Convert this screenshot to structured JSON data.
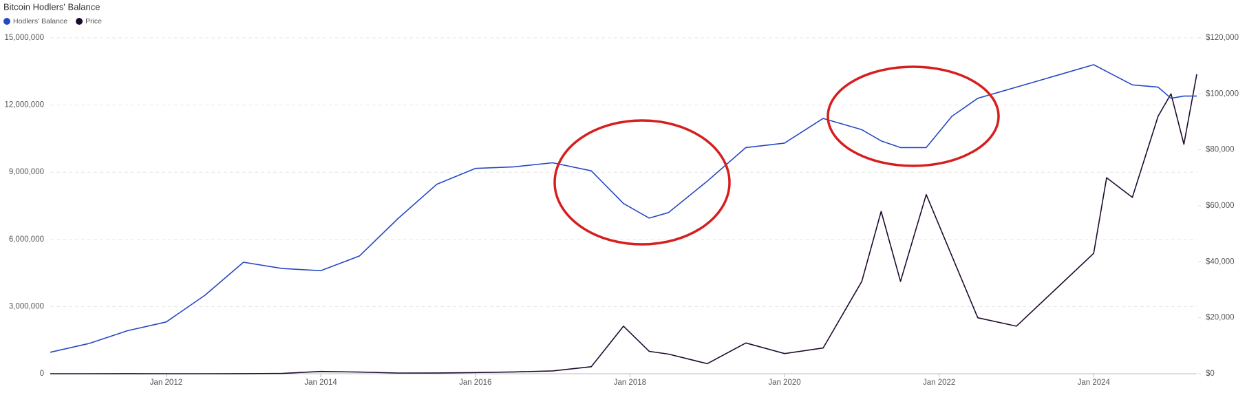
{
  "chart_data": {
    "type": "line",
    "title": "Bitcoin Hodlers' Balance",
    "x": [
      "2010-07",
      "2011-01",
      "2011-07",
      "2012-01",
      "2012-07",
      "2013-01",
      "2013-07",
      "2014-01",
      "2014-07",
      "2015-01",
      "2015-07",
      "2016-01",
      "2016-07",
      "2017-01",
      "2017-07",
      "2017-12",
      "2018-04",
      "2018-07",
      "2019-01",
      "2019-07",
      "2020-01",
      "2020-07",
      "2021-01",
      "2021-04",
      "2021-07",
      "2021-11",
      "2022-03",
      "2022-07",
      "2023-01",
      "2023-07",
      "2024-01",
      "2024-03",
      "2024-07",
      "2024-11",
      "2025-01",
      "2025-03",
      "2025-05"
    ],
    "series": [
      {
        "name": "Hodlers' Balance",
        "color": "#2447c4",
        "values": [
          960000,
          1350000,
          1920000,
          2310000,
          3500000,
          4980000,
          4700000,
          4600000,
          5260000,
          6930000,
          8460000,
          9170000,
          9240000,
          9420000,
          9060000,
          7600000,
          6950000,
          7200000,
          8600000,
          10100000,
          10300000,
          11400000,
          10900000,
          10400000,
          10100000,
          10100000,
          11500000,
          12300000,
          12800000,
          13300000,
          13800000,
          13500000,
          12900000,
          12800000,
          12300000,
          12400000,
          12400000
        ]
      },
      {
        "name": "Price",
        "color": "#1e0a2e",
        "axis": "y2",
        "values": [
          0.07,
          0.3,
          14,
          6,
          8,
          15,
          90,
          800,
          600,
          250,
          280,
          430,
          650,
          1000,
          2500,
          17000,
          8000,
          7000,
          3600,
          11000,
          7200,
          9200,
          33000,
          58000,
          33000,
          64000,
          42000,
          20000,
          17000,
          30000,
          43000,
          70000,
          63000,
          92000,
          100000,
          82000,
          107000
        ]
      }
    ],
    "xlim": [
      "2010-07",
      "2025-05"
    ],
    "xticks": [
      {
        "value": "2012-01",
        "label": "Jan 2012"
      },
      {
        "value": "2014-01",
        "label": "Jan 2014"
      },
      {
        "value": "2016-01",
        "label": "Jan 2016"
      },
      {
        "value": "2018-01",
        "label": "Jan 2018"
      },
      {
        "value": "2020-01",
        "label": "Jan 2020"
      },
      {
        "value": "2022-01",
        "label": "Jan 2022"
      },
      {
        "value": "2024-01",
        "label": "Jan 2024"
      }
    ],
    "ylim": [
      0,
      15000000
    ],
    "yticks": [
      0,
      {
        "value": 3000000,
        "label": "3,000,000"
      },
      {
        "value": 6000000,
        "label": "6,000,000"
      },
      {
        "value": 9000000,
        "label": "9,000,000"
      },
      {
        "value": 12000000,
        "label": "12,000,000"
      },
      {
        "value": 15000000,
        "label": "15,000,000"
      }
    ],
    "y2lim": [
      0,
      120000
    ],
    "y2ticks": [
      {
        "value": 0,
        "label": "$0"
      },
      {
        "value": 20000,
        "label": "$20,000"
      },
      {
        "value": 40000,
        "label": "$40,000"
      },
      {
        "value": 60000,
        "label": "$60,000"
      },
      {
        "value": 80000,
        "label": "$80,000"
      },
      {
        "value": 100000,
        "label": "$100,000"
      },
      {
        "value": 120000,
        "label": "$120,000"
      }
    ],
    "grid": true
  }
}
